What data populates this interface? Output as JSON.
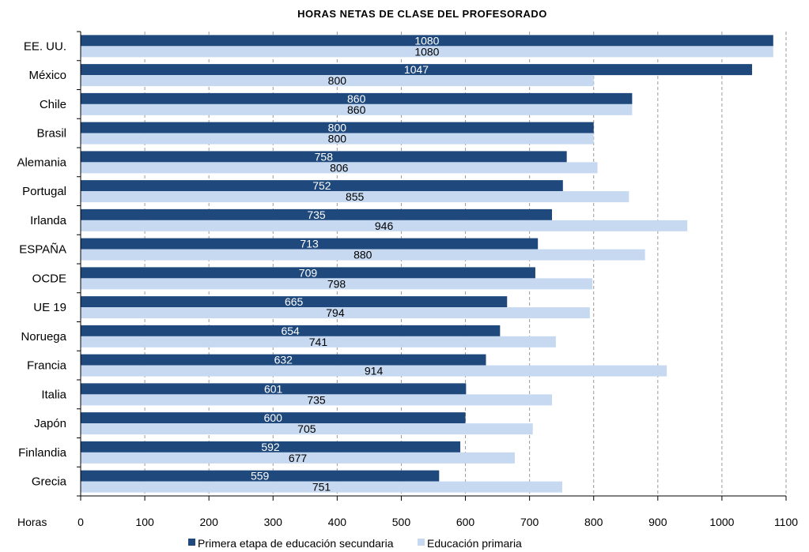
{
  "chart_data": {
    "type": "bar",
    "orientation": "horizontal",
    "title": "HORAS  NETAS DE CLASE DEL PROFESORADO",
    "xlabel": "Horas",
    "xlim": [
      0,
      1100
    ],
    "xticks": [
      "0",
      "100",
      "200",
      "300",
      "400",
      "500",
      "600",
      "700",
      "800",
      "900",
      "1000",
      "1100"
    ],
    "grid": "vertical-dashed",
    "legend_position": "bottom",
    "categories": [
      "EE. UU.",
      "México",
      "Chile",
      "Brasil",
      "Alemania",
      "Portugal",
      "Irlanda",
      "ESPAÑA",
      "OCDE",
      "UE 19",
      "Noruega",
      "Francia",
      "Italia",
      "Japón",
      "Finlandia",
      "Grecia"
    ],
    "series": [
      {
        "name": "Primera etapa de educación secundaria",
        "color": "#1f497d",
        "values": [
          1080,
          1047,
          860,
          800,
          758,
          752,
          735,
          713,
          709,
          665,
          654,
          632,
          601,
          600,
          592,
          559
        ]
      },
      {
        "name": "Educación primaria",
        "color": "#c6d9f1",
        "values": [
          1080,
          800,
          860,
          800,
          806,
          855,
          946,
          880,
          798,
          794,
          741,
          914,
          735,
          705,
          677,
          751
        ]
      }
    ]
  }
}
